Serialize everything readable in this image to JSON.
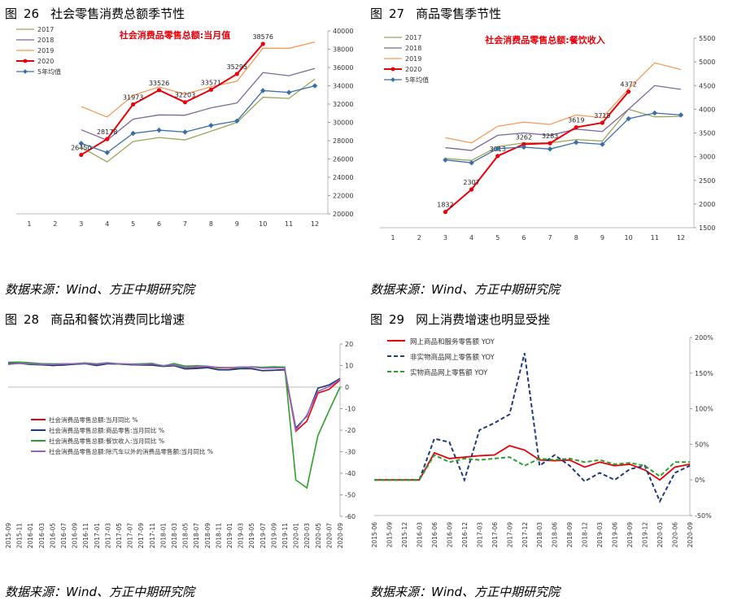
{
  "figures": [
    {
      "prefix": "图",
      "number": "26",
      "title": "社会零售消费总额季节性",
      "source": "数据来源：Wind、方正中期研究院"
    },
    {
      "prefix": "图",
      "number": "27",
      "title": "商品零售季节性",
      "source": "数据来源：Wind、方正中期研究院"
    },
    {
      "prefix": "图",
      "number": "28",
      "title": "商品和餐饮消费同比增速",
      "source": "数据来源：Wind、方正中期研究院"
    },
    {
      "prefix": "图",
      "number": "29",
      "title": "网上消费增速也明显受挫",
      "source": "数据来源：Wind、方正中期研究院"
    }
  ],
  "chart_data": [
    {
      "type": "line",
      "title": "社会消费品零售总额:当月值",
      "title_color": "#e8000b",
      "categories": [
        "1",
        "2",
        "3",
        "4",
        "5",
        "6",
        "7",
        "8",
        "9",
        "10",
        "11",
        "12"
      ],
      "ylim": [
        20000,
        40000
      ],
      "yticks": [
        20000,
        22000,
        24000,
        26000,
        28000,
        30000,
        32000,
        34000,
        36000,
        38000,
        40000
      ],
      "y_axis_side": "right",
      "legend_position": "top-left",
      "series": [
        {
          "name": "2017",
          "color": "#9aa55a",
          "values": [
            null,
            null,
            27279,
            25680,
            27908,
            28346,
            28085,
            29031,
            29998,
            32749,
            32623,
            34734
          ]
        },
        {
          "name": "2018",
          "color": "#7d6899",
          "values": [
            null,
            null,
            29194,
            28054,
            30361,
            30816,
            30784,
            31588,
            32116,
            35442,
            35103,
            35893
          ]
        },
        {
          "name": "2019",
          "color": "#f59b57",
          "values": [
            null,
            null,
            31726,
            30586,
            32956,
            33878,
            33073,
            33896,
            34495,
            38104,
            38094,
            38777
          ]
        },
        {
          "name": "2020",
          "color": "#e8000b",
          "marker": "circle",
          "values": [
            null,
            null,
            26450,
            28178,
            31973,
            33526,
            32203,
            33571,
            35295,
            38576,
            null,
            null
          ],
          "labels": [
            null,
            null,
            "26450",
            "28178",
            "31973",
            "33526",
            "32203",
            "33571",
            "35295",
            "38576",
            null,
            null
          ]
        },
        {
          "name": "5年均值",
          "color": "#3a6ea8",
          "marker": "diamond",
          "values": [
            null,
            null,
            27701,
            26700,
            28799,
            29150,
            28942,
            29670,
            30160,
            33472,
            33277,
            34000
          ]
        }
      ]
    },
    {
      "type": "line",
      "title": "社会消费品零售总额:餐饮收入",
      "title_color": "#e8000b",
      "categories": [
        "1",
        "2",
        "3",
        "4",
        "5",
        "6",
        "7",
        "8",
        "9",
        "10",
        "11",
        "12"
      ],
      "ylim": [
        1500,
        5500
      ],
      "yticks": [
        1500,
        2000,
        2500,
        3000,
        3500,
        4000,
        4500,
        5000,
        5500
      ],
      "y_axis_side": "right",
      "legend_position": "top-left",
      "series": [
        {
          "name": "2017",
          "color": "#9aa55a",
          "values": [
            null,
            null,
            2960,
            2920,
            3210,
            3290,
            3290,
            3360,
            3330,
            4000,
            3840,
            3850
          ]
        },
        {
          "name": "2018",
          "color": "#7d6899",
          "values": [
            null,
            null,
            3190,
            3130,
            3450,
            3500,
            3450,
            3580,
            3530,
            4000,
            4500,
            4420
          ]
        },
        {
          "name": "2019",
          "color": "#f59b57",
          "values": [
            null,
            null,
            3400,
            3290,
            3640,
            3730,
            3680,
            3880,
            3820,
            4430,
            4980,
            4840
          ]
        },
        {
          "name": "2020",
          "color": "#e8000b",
          "marker": "circle",
          "values": [
            null,
            null,
            1832,
            2307,
            3013,
            3262,
            3283,
            3619,
            3715,
            4372,
            null,
            null
          ],
          "labels": [
            null,
            null,
            "1832",
            "2307",
            "3013",
            "3262",
            "3283",
            "3619",
            "3715",
            "4372",
            null,
            null
          ]
        },
        {
          "name": "5年均值",
          "color": "#3a6ea8",
          "marker": "diamond",
          "values": [
            null,
            null,
            2930,
            2870,
            3170,
            3200,
            3160,
            3300,
            3260,
            3800,
            3920,
            3880
          ]
        }
      ]
    },
    {
      "type": "line",
      "categories": [
        "2015-09",
        "2015-11",
        "2016-01",
        "2016-03",
        "2016-05",
        "2016-07",
        "2016-09",
        "2016-11",
        "2017-01",
        "2017-03",
        "2017-05",
        "2017-07",
        "2017-09",
        "2017-11",
        "2018-01",
        "2018-03",
        "2018-05",
        "2018-07",
        "2018-09",
        "2018-11",
        "2019-01",
        "2019-03",
        "2019-05",
        "2019-07",
        "2019-09",
        "2019-11",
        "2020-01",
        "2020-03",
        "2020-05",
        "2020-07",
        "2020-09"
      ],
      "ylim": [
        -60,
        20
      ],
      "yticks": [
        -60,
        -50,
        -40,
        -30,
        -20,
        -10,
        0,
        10,
        20
      ],
      "y_axis_side": "right",
      "legend_position": "center-left",
      "series": [
        {
          "name": "社会消费品零售总额:当月同比  %",
          "color": "#e8000b",
          "values": [
            10.9,
            11.2,
            10.7,
            10.5,
            10.0,
            10.2,
            10.7,
            10.9,
            10.0,
            10.9,
            10.7,
            10.4,
            10.3,
            10.2,
            9.7,
            10.1,
            8.5,
            8.8,
            9.2,
            8.1,
            8.2,
            8.7,
            8.6,
            7.6,
            7.8,
            8.0,
            -20.5,
            -15.8,
            -2.8,
            -1.1,
            3.3
          ]
        },
        {
          "name": "社会消费品零售总额:商品零售:当月同比  %",
          "color": "#1f3a7a",
          "values": [
            10.8,
            11.0,
            10.5,
            10.3,
            10.0,
            10.2,
            10.6,
            10.8,
            10.0,
            10.8,
            10.7,
            10.4,
            10.2,
            10.2,
            9.6,
            9.9,
            8.4,
            8.6,
            9.0,
            8.0,
            8.0,
            8.5,
            8.5,
            7.6,
            7.8,
            8.1,
            -19.0,
            -13.5,
            -0.5,
            1.0,
            4.0
          ]
        },
        {
          "name": "社会消费品零售总额:餐饮收入:当月同比  %",
          "color": "#2ca02c",
          "values": [
            11.5,
            11.6,
            11.3,
            10.9,
            10.8,
            10.8,
            10.9,
            11.2,
            10.8,
            11.3,
            10.7,
            10.7,
            10.8,
            11.0,
            9.8,
            10.9,
            9.7,
            9.9,
            9.7,
            8.9,
            9.1,
            9.0,
            9.4,
            9.2,
            9.4,
            9.3,
            -43.1,
            -46.8,
            -22.5,
            -11.0,
            0.0
          ]
        },
        {
          "name": "社会消费品零售总额:除汽车以外的消费品零售额:当月同比  %",
          "color": "#9467bd",
          "values": [
            10.5,
            11.0,
            10.8,
            10.6,
            10.5,
            10.7,
            10.9,
            11.0,
            10.6,
            11.2,
            10.9,
            10.7,
            10.5,
            10.8,
            10.0,
            10.3,
            9.1,
            9.4,
            9.6,
            9.2,
            9.0,
            9.3,
            9.3,
            8.8,
            8.9,
            8.9,
            -20.0,
            -13.0,
            -2.0,
            0.2,
            3.6
          ]
        }
      ]
    },
    {
      "type": "line",
      "categories": [
        "2015-06",
        "2015-09",
        "2015-12",
        "2016-03",
        "2016-06",
        "2016-09",
        "2016-12",
        "2017-03",
        "2017-06",
        "2017-09",
        "2017-12",
        "2018-03",
        "2018-06",
        "2018-09",
        "2018-12",
        "2019-03",
        "2019-06",
        "2019-09",
        "2019-12",
        "2020-03",
        "2020-06",
        "2020-09"
      ],
      "ylim": [
        -50,
        200
      ],
      "yticks": [
        "-50%",
        "0%",
        "50%",
        "100%",
        "150%",
        "200%"
      ],
      "y_axis_side": "right",
      "legend_position": "top-left",
      "series": [
        {
          "name": "网上商品和服务零售额  YOY",
          "color": "#e8000b",
          "dash": "solid",
          "values": [
            0,
            0,
            0,
            0,
            38,
            30,
            32,
            34,
            35,
            48,
            42,
            28,
            27,
            28,
            18,
            25,
            20,
            22,
            14,
            0,
            18,
            22
          ]
        },
        {
          "name": "非实物商品网上零售额  YOY",
          "color": "#1f3a7a",
          "dash": "dashed",
          "values": [
            0,
            0,
            0,
            0,
            58,
            53,
            0,
            70,
            80,
            92,
            178,
            20,
            35,
            20,
            -2,
            10,
            0,
            15,
            20,
            -30,
            10,
            20
          ]
        },
        {
          "name": "实物商品网上零售额  YOY",
          "color": "#2ca02c",
          "dash": "dashed",
          "values": [
            0,
            0,
            0,
            0,
            35,
            25,
            30,
            28,
            30,
            32,
            20,
            30,
            28,
            30,
            25,
            28,
            22,
            24,
            20,
            5,
            25,
            25
          ]
        }
      ]
    }
  ]
}
